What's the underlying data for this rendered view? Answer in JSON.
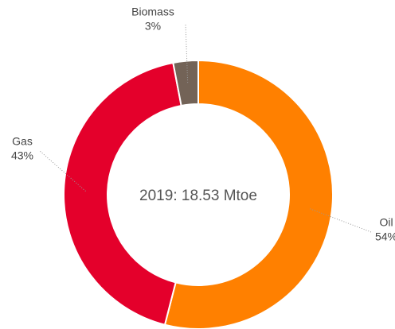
{
  "chart_data": {
    "type": "donut",
    "center_label": "2019: 18.53 Mtoe",
    "categories": [
      "Oil",
      "Gas",
      "Biomass"
    ],
    "values": [
      54,
      43,
      3
    ],
    "value_labels": [
      "54%",
      "43%",
      "3%"
    ],
    "colors": [
      "#ff8000",
      "#e4002b",
      "#736357"
    ]
  }
}
